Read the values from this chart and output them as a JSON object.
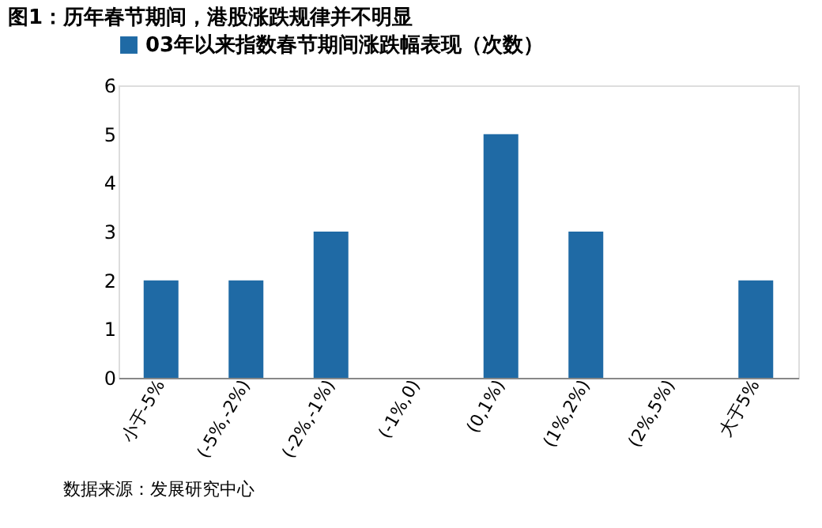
{
  "chart_data": {
    "type": "bar",
    "title": "图1：历年春节期间，港股涨跌规律并不明显",
    "categories": [
      "小于-5%",
      "(-5%,-2%)",
      "(-2%,-1%)",
      "(-1%,0)",
      "(0,1%)",
      "(1%,2%)",
      "(2%,5%)",
      "大于5%"
    ],
    "series": [
      {
        "name": "03年以来指数春节期间涨跌幅表现（次数）",
        "color": "#1f6aa5",
        "values": [
          2,
          2,
          3,
          0,
          5,
          3,
          0,
          2
        ]
      }
    ],
    "ylim": [
      0,
      6
    ],
    "yticks": [
      0,
      1,
      2,
      3,
      4,
      5,
      6
    ],
    "grid": false,
    "legend": "top",
    "annotations": [
      "数据来源：发展研究中心"
    ]
  }
}
